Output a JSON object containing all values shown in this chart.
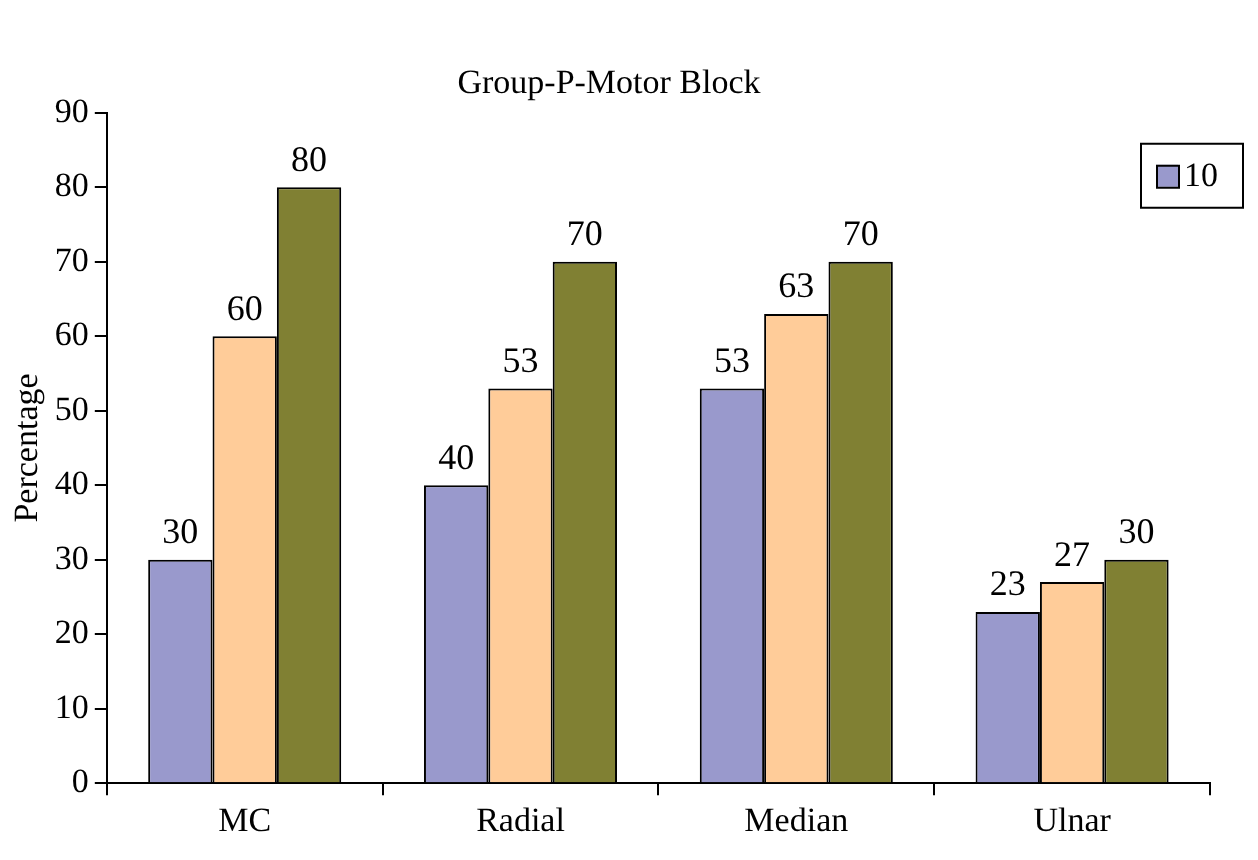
{
  "chart_data": {
    "type": "bar",
    "title": "Group-P-Motor Block",
    "ylabel": "Percentage",
    "categories": [
      "MC",
      "Radial",
      "Median",
      "Ulnar"
    ],
    "series": [
      {
        "name": "10",
        "color": "#9999cc",
        "values": [
          30,
          40,
          53,
          23
        ]
      },
      {
        "color": "#ffcc99",
        "values": [
          60,
          53,
          63,
          27
        ]
      },
      {
        "color": "#808033",
        "values": [
          80,
          70,
          70,
          30
        ]
      }
    ],
    "ylim": [
      0,
      90
    ],
    "yticks": [
      0,
      10,
      20,
      30,
      40,
      50,
      60,
      70,
      80,
      90
    ],
    "grid": false,
    "legend": "top right",
    "data_labels": true
  }
}
